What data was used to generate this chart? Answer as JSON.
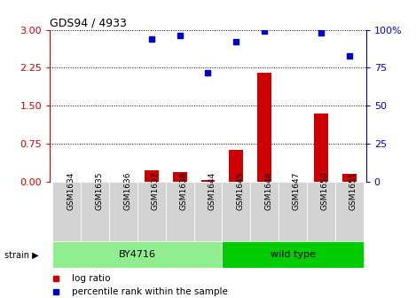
{
  "title": "GDS94 / 4933",
  "samples": [
    "GSM1634",
    "GSM1635",
    "GSM1636",
    "GSM1637",
    "GSM1638",
    "GSM1644",
    "GSM1645",
    "GSM1646",
    "GSM1647",
    "GSM1650",
    "GSM1651"
  ],
  "log_ratio": [
    0.0,
    0.0,
    0.0,
    0.22,
    0.2,
    0.04,
    0.63,
    2.15,
    0.0,
    1.35,
    0.15
  ],
  "percentile_rank_pct": [
    null,
    null,
    null,
    94.0,
    96.0,
    72.0,
    92.0,
    99.0,
    null,
    98.0,
    83.0
  ],
  "bar_color": "#CC0000",
  "dot_color": "#0000CC",
  "left_yticks": [
    0,
    0.75,
    1.5,
    2.25,
    3.0
  ],
  "left_ylim": [
    0,
    3.0
  ],
  "right_yticks": [
    0,
    25,
    50,
    75,
    100
  ],
  "right_ylim": [
    0,
    100
  ],
  "right_ylabel_suffix": "%",
  "bg_color": "#FFFFFF",
  "grid_color": "#000000",
  "tick_label_color_left": "#CC0000",
  "tick_label_color_right": "#0000CC",
  "legend_log_ratio_label": "log ratio",
  "legend_percentile_label": "percentile rank within the sample",
  "strain_label": "strain",
  "by4716_color_light": "#90EE90",
  "by4716_color_dark": "#00CC00",
  "wildtype_color": "#00CC00",
  "by4716_indices": [
    0,
    1,
    2,
    3,
    4,
    5
  ],
  "wildtype_indices": [
    6,
    7,
    8,
    9,
    10
  ],
  "by4716_label": "BY4716",
  "wildtype_label": "wild type",
  "xtick_bg_color": "#D3D3D3",
  "bar_width": 0.5
}
